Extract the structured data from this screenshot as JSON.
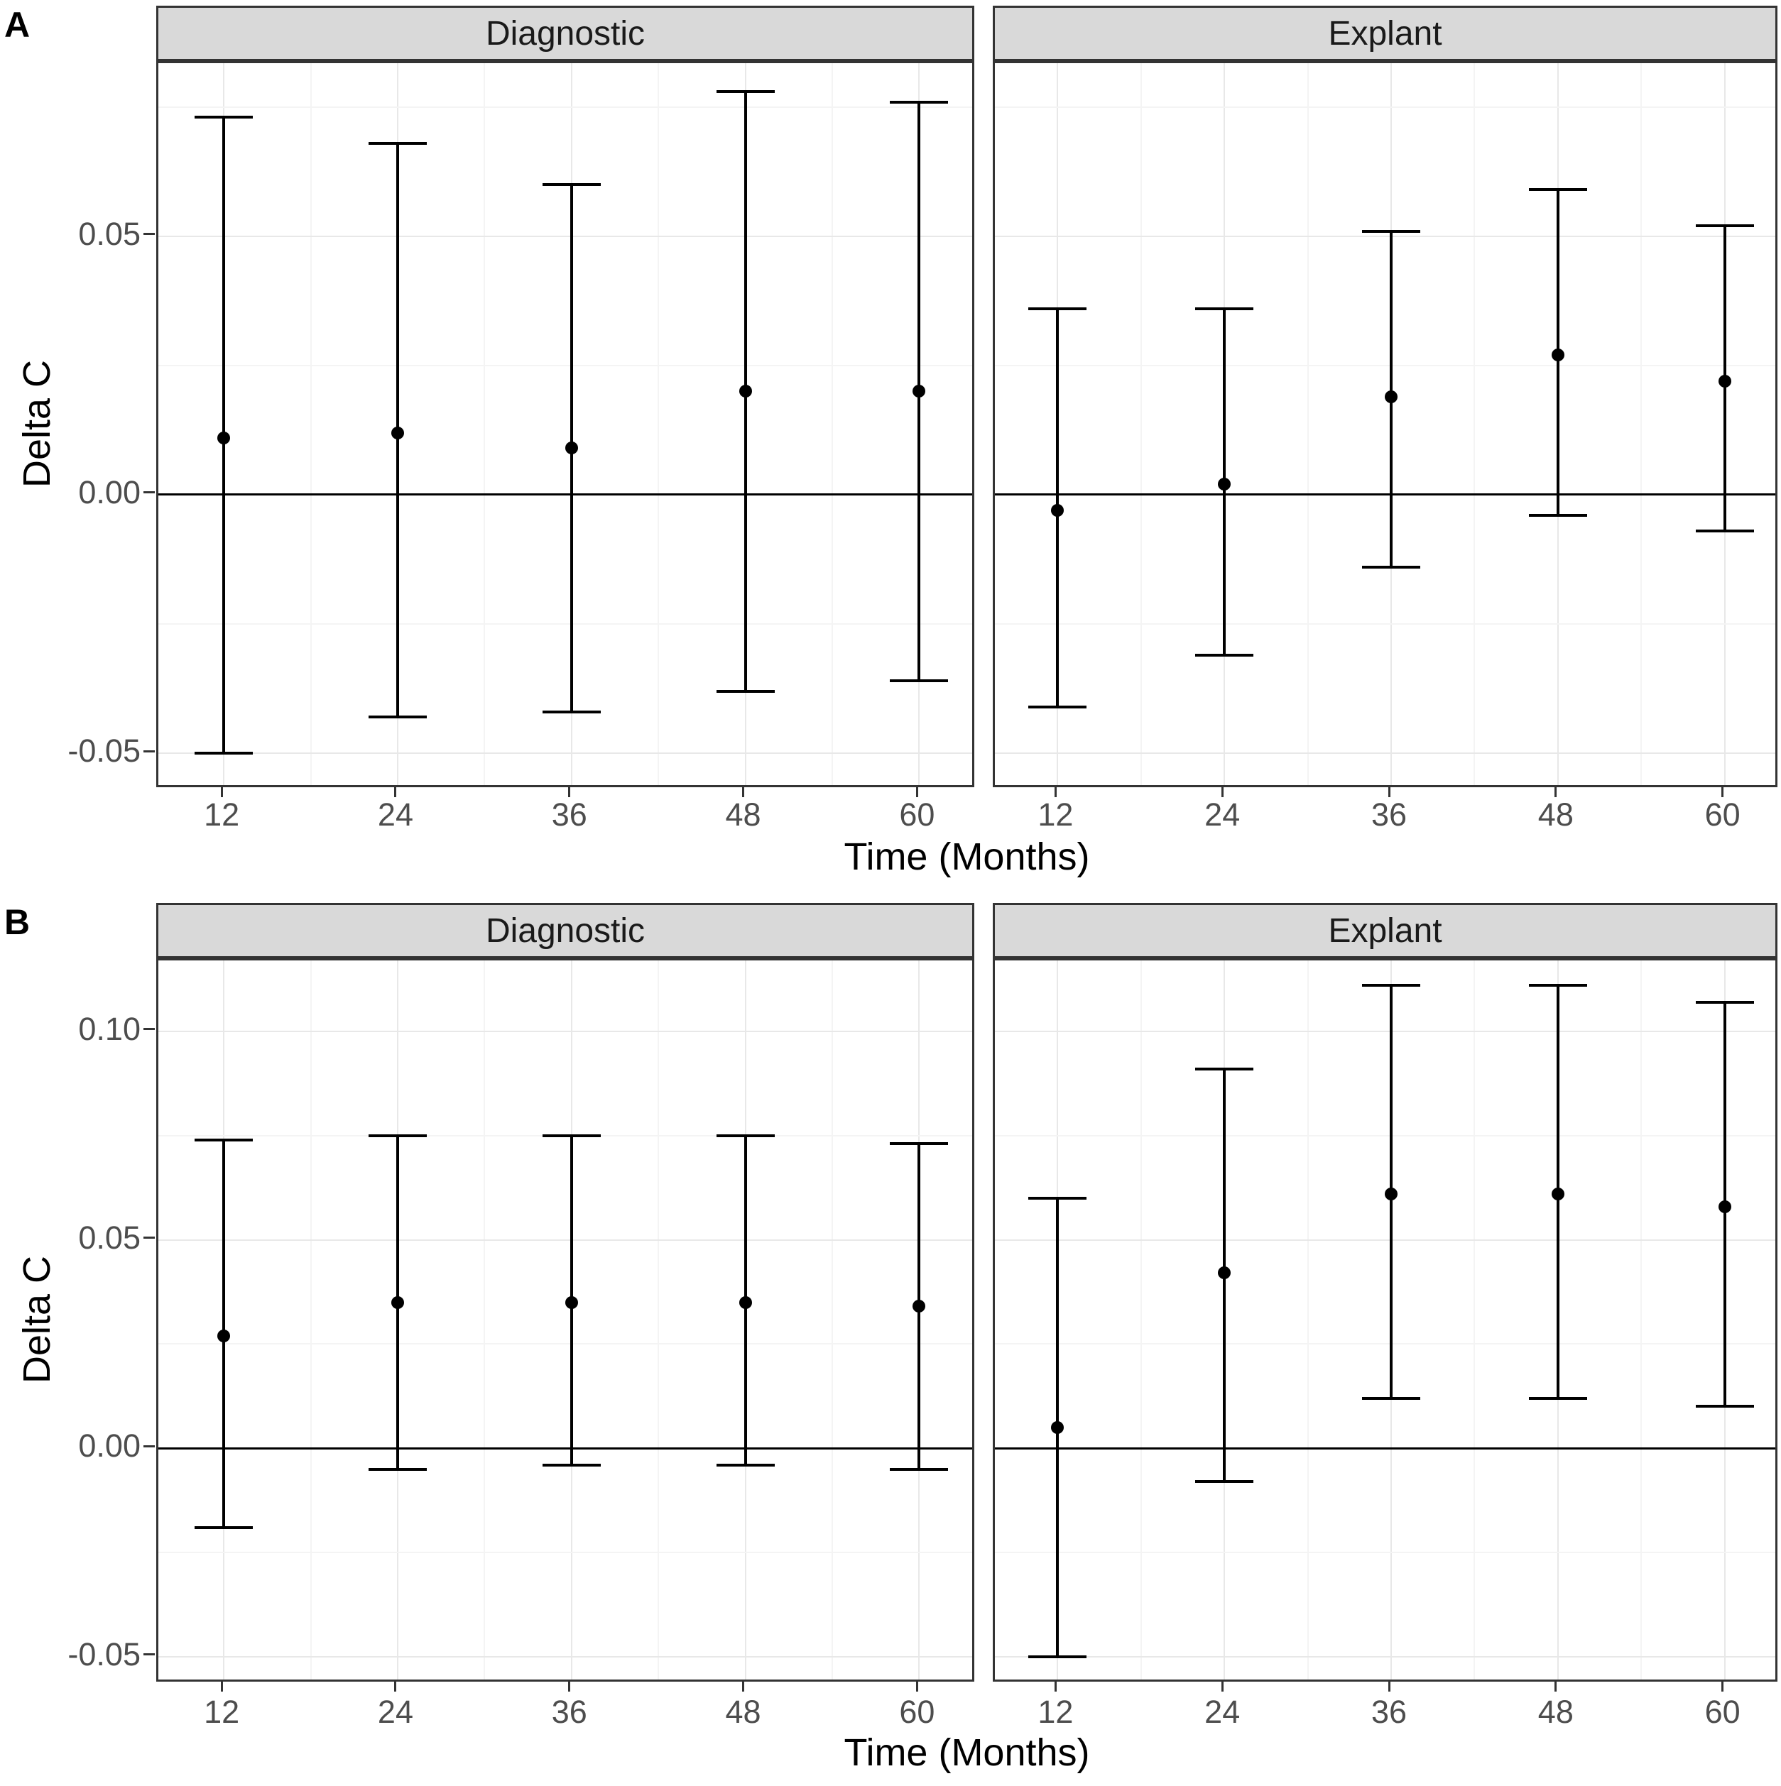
{
  "colors": {
    "point": "#000000",
    "error_bar": "#000000",
    "ref_line": "#000000",
    "strip_fill": "#d9d9d9",
    "strip_text": "#1a1a1a",
    "panel_border": "#333333",
    "grid_major": "#e8e8e8",
    "grid_minor": "#f4f4f4",
    "axis_text": "#4d4d4d",
    "axis_title": "#000000",
    "tick_mark": "#333333"
  },
  "chart_data": [
    {
      "panel_label": "A",
      "type": "scatter",
      "subtype": "point-with-errorbar",
      "xlabel": "Time (Months)",
      "ylabel": "Delta C",
      "legend": "none",
      "grid": "on",
      "ref_line": 0,
      "ylim": [
        -0.057,
        0.0835
      ],
      "y_major": [
        0.05,
        0,
        -0.05
      ],
      "y_minor": [
        0.075,
        0.025,
        -0.025
      ],
      "y_tick_labels": [
        "0.05",
        "0.00",
        "-0.05"
      ],
      "x_ticks": [
        12,
        24,
        36,
        48,
        60
      ],
      "x_tick_labels": [
        "12",
        "24",
        "36",
        "48",
        "60"
      ],
      "facets": [
        {
          "name": "Diagnostic",
          "points": [
            {
              "x": 12,
              "y": 0.011,
              "ymin": -0.05,
              "ymax": 0.073
            },
            {
              "x": 24,
              "y": 0.012,
              "ymin": -0.043,
              "ymax": 0.068
            },
            {
              "x": 36,
              "y": 0.009,
              "ymin": -0.042,
              "ymax": 0.06
            },
            {
              "x": 48,
              "y": 0.02,
              "ymin": -0.038,
              "ymax": 0.078
            },
            {
              "x": 60,
              "y": 0.02,
              "ymin": -0.036,
              "ymax": 0.076
            }
          ]
        },
        {
          "name": "Explant",
          "points": [
            {
              "x": 12,
              "y": -0.003,
              "ymin": -0.041,
              "ymax": 0.036
            },
            {
              "x": 24,
              "y": 0.002,
              "ymin": -0.031,
              "ymax": 0.036
            },
            {
              "x": 36,
              "y": 0.019,
              "ymin": -0.014,
              "ymax": 0.051
            },
            {
              "x": 48,
              "y": 0.027,
              "ymin": -0.004,
              "ymax": 0.059
            },
            {
              "x": 60,
              "y": 0.022,
              "ymin": -0.007,
              "ymax": 0.052
            }
          ]
        }
      ]
    },
    {
      "panel_label": "B",
      "type": "scatter",
      "subtype": "point-with-errorbar",
      "xlabel": "Time (Months)",
      "ylabel": "Delta C",
      "legend": "none",
      "grid": "on",
      "ref_line": 0,
      "ylim": [
        -0.0565,
        0.117
      ],
      "y_major": [
        0.1,
        0.05,
        0,
        -0.05
      ],
      "y_minor": [
        0.075,
        0.025,
        -0.025
      ],
      "y_tick_labels": [
        "0.10",
        "0.05",
        "0.00",
        "-0.05"
      ],
      "x_ticks": [
        12,
        24,
        36,
        48,
        60
      ],
      "x_tick_labels": [
        "12",
        "24",
        "36",
        "48",
        "60"
      ],
      "facets": [
        {
          "name": "Diagnostic",
          "points": [
            {
              "x": 12,
              "y": 0.027,
              "ymin": -0.019,
              "ymax": 0.074
            },
            {
              "x": 24,
              "y": 0.035,
              "ymin": -0.005,
              "ymax": 0.075
            },
            {
              "x": 36,
              "y": 0.035,
              "ymin": -0.004,
              "ymax": 0.075
            },
            {
              "x": 48,
              "y": 0.035,
              "ymin": -0.004,
              "ymax": 0.075
            },
            {
              "x": 60,
              "y": 0.034,
              "ymin": -0.005,
              "ymax": 0.073
            }
          ]
        },
        {
          "name": "Explant",
          "points": [
            {
              "x": 12,
              "y": 0.005,
              "ymin": -0.05,
              "ymax": 0.06
            },
            {
              "x": 24,
              "y": 0.042,
              "ymin": -0.008,
              "ymax": 0.091
            },
            {
              "x": 36,
              "y": 0.061,
              "ymin": 0.012,
              "ymax": 0.111
            },
            {
              "x": 48,
              "y": 0.061,
              "ymin": 0.012,
              "ymax": 0.111
            },
            {
              "x": 60,
              "y": 0.058,
              "ymin": 0.01,
              "ymax": 0.107
            }
          ]
        }
      ]
    }
  ]
}
